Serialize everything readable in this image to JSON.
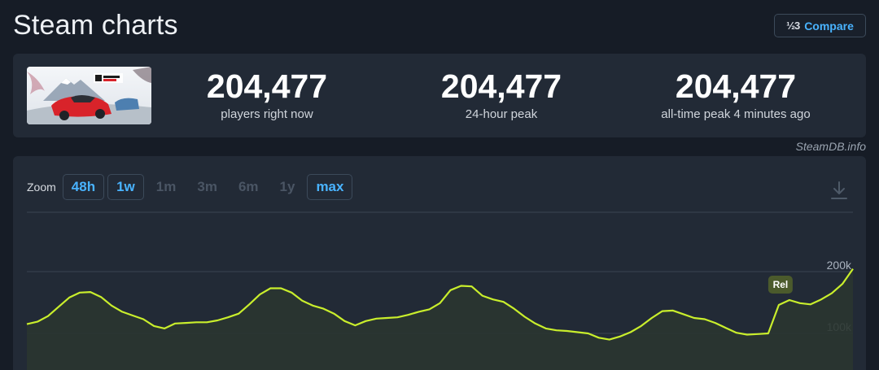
{
  "page": {
    "title": "Steam charts",
    "compare": {
      "icon": "fraction-icon",
      "icon_text": "½3",
      "label": "Compare"
    }
  },
  "stats": {
    "thumbnail_icon": "game-thumbnail",
    "items": [
      {
        "value": "204,477",
        "label": "players right now"
      },
      {
        "value": "204,477",
        "label": "24-hour peak"
      },
      {
        "value": "204,477",
        "label": "all-time peak 4 minutes ago"
      }
    ]
  },
  "credit": "SteamDB.info",
  "zoom": {
    "label": "Zoom",
    "options": [
      {
        "label": "48h",
        "active": true
      },
      {
        "label": "1w",
        "active": true
      },
      {
        "label": "1m",
        "active": false
      },
      {
        "label": "3m",
        "active": false
      },
      {
        "label": "6m",
        "active": false
      },
      {
        "label": "1y",
        "active": false
      },
      {
        "label": "max",
        "active": true
      }
    ],
    "download_icon": "download-icon"
  },
  "colors": {
    "line": "#c9ee2c",
    "fill": "#2a3530",
    "grid": "#3a4452",
    "annotation_bg": "#4b5a2c",
    "accent": "#49b3ff"
  },
  "chart_data": {
    "type": "line",
    "series": [
      {
        "values": [
          115000,
          119000,
          128000,
          143000,
          158000,
          166000,
          167000,
          159000,
          145000,
          135000,
          129000,
          123000,
          112000,
          108000,
          116000,
          117000,
          118000,
          118000,
          121000,
          126000,
          132000,
          147000,
          163000,
          173000,
          173000,
          166000,
          153000,
          145000,
          140000,
          132000,
          120000,
          113000,
          120000,
          124000,
          125000,
          126000,
          130000,
          135000,
          139000,
          149000,
          170000,
          177000,
          176000,
          161000,
          155000,
          151000,
          140000,
          127000,
          116000,
          108000,
          105000,
          104000,
          102000,
          100000,
          93000,
          90000,
          95000,
          102000,
          112000,
          125000,
          136000,
          137000,
          131000,
          125000,
          123000,
          117000,
          109000,
          101000,
          98000,
          99000,
          100000,
          146000,
          154000,
          149000,
          147000,
          155000,
          165000,
          180000,
          204477
        ]
      }
    ],
    "yticks": [
      {
        "value": 200000,
        "label": "200k"
      },
      {
        "value": 100000,
        "label": "100k"
      }
    ],
    "annotations": [
      {
        "index": 71,
        "label": "Rel"
      }
    ],
    "grid": true
  }
}
